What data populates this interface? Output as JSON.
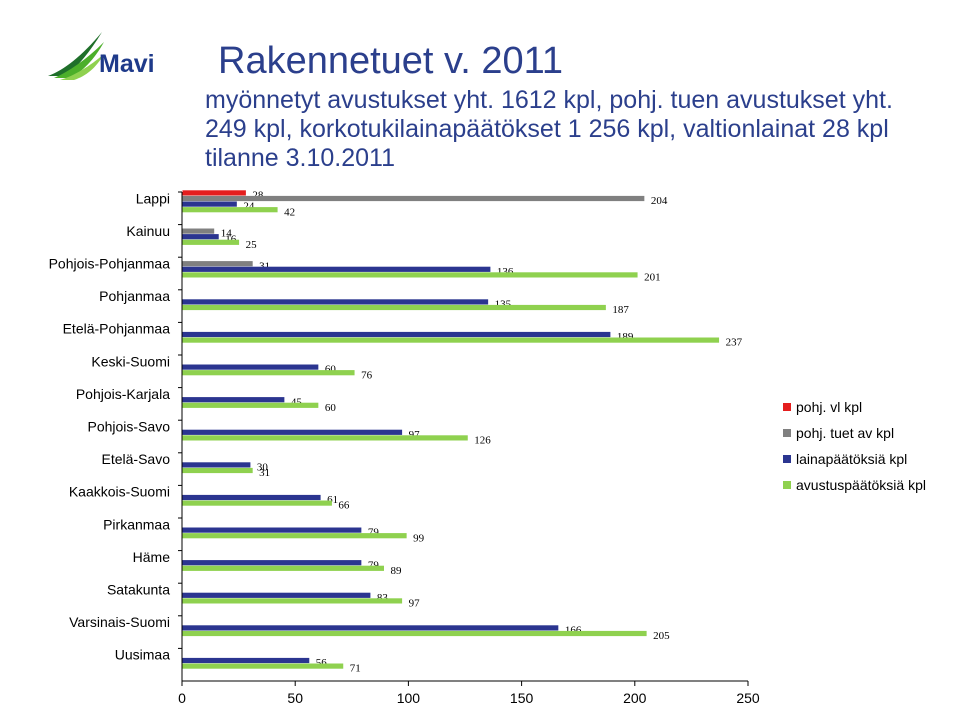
{
  "logo": {
    "text": "Mavi"
  },
  "title": "Rakennetuet v. 2011",
  "subtitle_lines": [
    "myönnetyt avustukset yht. 1612 kpl, pohj. tuen avustukset yht.",
    "249 kpl, korkotukilainapäätökset 1 256 kpl, valtionlainat 28 kpl",
    "tilanne 3.10.2011"
  ],
  "colors": {
    "red": "#e41e1e",
    "gray": "#808080",
    "navy": "#2b3590",
    "green": "#8fd14f",
    "title": "#2b3f8c"
  },
  "chart_data": {
    "type": "bar",
    "orientation": "horizontal",
    "title": "",
    "xlabel": "",
    "ylabel": "",
    "xlim": [
      0,
      250
    ],
    "x_ticks": [
      0,
      50,
      100,
      150,
      200,
      250
    ],
    "grid": false,
    "legend_position": "right",
    "categories": [
      "Lappi",
      "Kainuu",
      "Pohjois-Pohjanmaa",
      "Pohjanmaa",
      "Etelä-Pohjanmaa",
      "Keski-Suomi",
      "Pohjois-Karjala",
      "Pohjois-Savo",
      "Etelä-Savo",
      "Kaakkois-Suomi",
      "Pirkanmaa",
      "Häme",
      "Satakunta",
      "Varsinais-Suomi",
      "Uusimaa"
    ],
    "series": [
      {
        "name": "pohj. vl kpl",
        "color": "#e41e1e",
        "values": [
          28,
          null,
          null,
          null,
          null,
          null,
          null,
          null,
          null,
          null,
          null,
          null,
          null,
          null,
          null
        ]
      },
      {
        "name": "pohj. tuet av kpl",
        "color": "#808080",
        "values": [
          204,
          14,
          31,
          null,
          null,
          null,
          null,
          null,
          null,
          null,
          null,
          null,
          null,
          null,
          null
        ]
      },
      {
        "name": "lainapäätöksiä kpl",
        "color": "#2b3590",
        "values": [
          24,
          16,
          136,
          135,
          189,
          60,
          45,
          97,
          30,
          61,
          79,
          79,
          83,
          166,
          56
        ]
      },
      {
        "name": "avustuspäätöksiä kpl",
        "color": "#8fd14f",
        "values": [
          42,
          25,
          201,
          187,
          237,
          76,
          60,
          126,
          31,
          66,
          99,
          89,
          97,
          205,
          71
        ]
      }
    ]
  }
}
